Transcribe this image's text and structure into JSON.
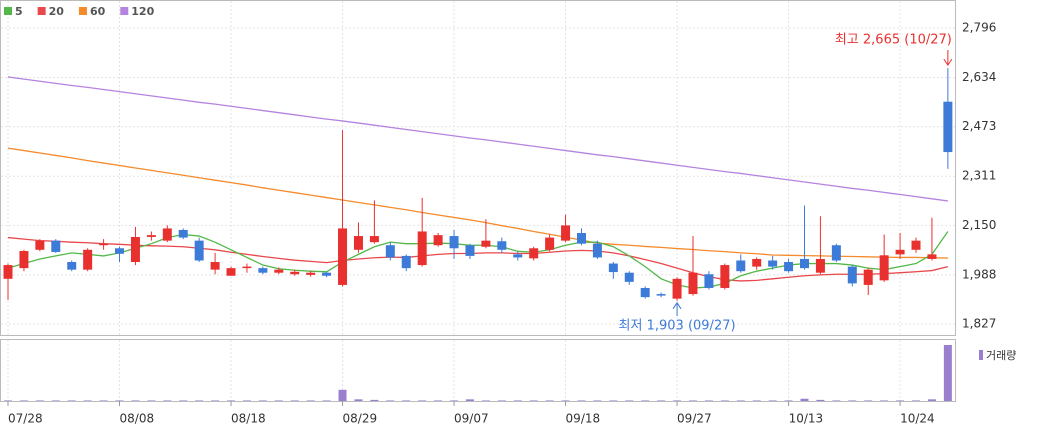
{
  "chart_data": {
    "type": "candlestick",
    "categories": [
      "07/28",
      null,
      null,
      null,
      null,
      null,
      null,
      "08/08",
      null,
      null,
      null,
      null,
      null,
      null,
      "08/18",
      null,
      null,
      null,
      null,
      null,
      null,
      "08/29",
      null,
      null,
      null,
      null,
      null,
      null,
      "09/07",
      null,
      null,
      null,
      null,
      null,
      null,
      "09/18",
      null,
      null,
      null,
      null,
      null,
      null,
      "09/27",
      null,
      null,
      null,
      null,
      null,
      null,
      "10/13",
      null,
      null,
      null,
      null,
      null,
      null,
      "10/24",
      null,
      null,
      null
    ],
    "open": [
      1975,
      2010,
      2070,
      2100,
      2030,
      2005,
      2085,
      2075,
      2030,
      2112,
      2100,
      2135,
      2100,
      2005,
      1985,
      2010,
      2010,
      1995,
      1990,
      1988,
      1995,
      1955,
      2070,
      2095,
      2085,
      2050,
      2020,
      2085,
      2115,
      2085,
      2080,
      2098,
      2055,
      2042,
      2070,
      2100,
      2125,
      2090,
      2025,
      1995,
      1945,
      1925,
      1910,
      1925,
      1990,
      1945,
      2035,
      2015,
      2035,
      2030,
      2040,
      1995,
      2085,
      2015,
      1955,
      1970,
      2055,
      2070,
      2040,
      2555
    ],
    "high": [
      2025,
      2070,
      2105,
      2105,
      2035,
      2075,
      2105,
      2080,
      2145,
      2130,
      2150,
      2140,
      2110,
      2060,
      2015,
      2025,
      2015,
      2012,
      2005,
      2002,
      1998,
      2462,
      2160,
      2232,
      2095,
      2055,
      2240,
      2125,
      2135,
      2090,
      2170,
      2110,
      2065,
      2080,
      2120,
      2185,
      2140,
      2100,
      2030,
      2000,
      1950,
      1930,
      1980,
      2115,
      2000,
      2025,
      2055,
      2045,
      2050,
      2040,
      2215,
      2180,
      2090,
      2020,
      2010,
      2120,
      2125,
      2110,
      2175,
      2665
    ],
    "low": [
      1906,
      2000,
      2065,
      2060,
      2000,
      2000,
      2070,
      2030,
      2020,
      2100,
      2095,
      2105,
      2030,
      1990,
      1985,
      1995,
      1990,
      1990,
      1985,
      1982,
      1980,
      1950,
      2060,
      2090,
      2035,
      2000,
      2015,
      2080,
      2040,
      2040,
      2075,
      2060,
      2035,
      2035,
      2065,
      2095,
      2085,
      2040,
      1975,
      1955,
      1910,
      1915,
      1903,
      1920,
      1940,
      1940,
      1995,
      2005,
      2005,
      1995,
      2005,
      1990,
      2030,
      1950,
      1922,
      1965,
      2040,
      2060,
      2035,
      2335
    ],
    "close": [
      2020,
      2066,
      2100,
      2063,
      2005,
      2070,
      2090,
      2057,
      2112,
      2118,
      2140,
      2110,
      2035,
      2030,
      2010,
      2015,
      1995,
      2005,
      1998,
      1995,
      1985,
      2140,
      2115,
      2115,
      2045,
      2010,
      2130,
      2118,
      2075,
      2050,
      2100,
      2070,
      2045,
      2075,
      2110,
      2150,
      2090,
      2045,
      1997,
      1965,
      1915,
      1920,
      1975,
      1995,
      1945,
      2020,
      2000,
      2040,
      2015,
      2000,
      2010,
      2040,
      2035,
      1960,
      2005,
      2052,
      2070,
      2100,
      2055,
      2390
    ],
    "up_color": "#e8312f",
    "down_color": "#3d7bd9",
    "series": [
      {
        "name": "5",
        "color": "#52b848",
        "values": [
          2010,
          2025,
          2040,
          2050,
          2060,
          2055,
          2050,
          2060,
          2075,
          2090,
          2110,
          2120,
          2115,
          2095,
          2070,
          2045,
          2020,
          2008,
          2003,
          2000,
          1998,
          2030,
          2055,
          2080,
          2095,
          2090,
          2090,
          2092,
          2090,
          2085,
          2085,
          2080,
          2065,
          2062,
          2070,
          2085,
          2095,
          2095,
          2080,
          2050,
          2015,
          1975,
          1955,
          1945,
          1948,
          1960,
          1985,
          2000,
          2010,
          2020,
          2025,
          2025,
          2025,
          2020,
          2010,
          2005,
          2015,
          2025,
          2055,
          2130
        ]
      },
      {
        "name": "20",
        "color": "#e8474b",
        "values": [
          2110,
          2105,
          2100,
          2098,
          2095,
          2093,
          2090,
          2088,
          2085,
          2083,
          2082,
          2080,
          2075,
          2070,
          2062,
          2055,
          2048,
          2042,
          2036,
          2032,
          2028,
          2035,
          2040,
          2044,
          2046,
          2045,
          2050,
          2055,
          2058,
          2058,
          2060,
          2060,
          2058,
          2058,
          2062,
          2066,
          2068,
          2066,
          2060,
          2050,
          2038,
          2025,
          2010,
          1995,
          1982,
          1972,
          1968,
          1970,
          1975,
          1980,
          1985,
          1988,
          1990,
          1990,
          1990,
          1992,
          1995,
          1998,
          2002,
          2015
        ]
      },
      {
        "name": "60",
        "color": "#f58b2c",
        "values": [
          2403,
          2395,
          2387,
          2379,
          2371,
          2362,
          2354,
          2346,
          2338,
          2330,
          2322,
          2314,
          2306,
          2298,
          2290,
          2282,
          2273,
          2265,
          2257,
          2249,
          2241,
          2233,
          2225,
          2217,
          2209,
          2201,
          2192,
          2184,
          2176,
          2168,
          2159,
          2149,
          2140,
          2130,
          2121,
          2111,
          2102,
          2092,
          2088,
          2085,
          2081,
          2078,
          2074,
          2071,
          2067,
          2064,
          2060,
          2057,
          2053,
          2052,
          2051,
          2050,
          2049,
          2048,
          2047,
          2046,
          2045,
          2045,
          2044,
          2043
        ]
      },
      {
        "name": "120",
        "color": "#b583e0",
        "values": [
          2636,
          2629,
          2622,
          2615,
          2608,
          2602,
          2595,
          2588,
          2581,
          2574,
          2567,
          2560,
          2553,
          2547,
          2540,
          2533,
          2526,
          2519,
          2512,
          2505,
          2498,
          2492,
          2485,
          2478,
          2471,
          2464,
          2457,
          2450,
          2443,
          2436,
          2430,
          2423,
          2416,
          2409,
          2402,
          2395,
          2388,
          2381,
          2375,
          2368,
          2361,
          2354,
          2347,
          2340,
          2333,
          2326,
          2320,
          2313,
          2306,
          2299,
          2292,
          2285,
          2278,
          2271,
          2265,
          2258,
          2251,
          2244,
          2237,
          2230
        ]
      }
    ],
    "volume": {
      "name": "거래량",
      "color": "#9b7fcf",
      "values": [
        1,
        1,
        1,
        1,
        1,
        1,
        1,
        1,
        1,
        1,
        1,
        1,
        1,
        1,
        1,
        1,
        1,
        1,
        1,
        1,
        1,
        20,
        3,
        2,
        1,
        1,
        1,
        1,
        1,
        3,
        1,
        1,
        1,
        1,
        1,
        1,
        1,
        1,
        1,
        1,
        1,
        1,
        1,
        1,
        1,
        1,
        1,
        1,
        1,
        1,
        4,
        2,
        1,
        1,
        1,
        1,
        1,
        1,
        3,
        100
      ]
    },
    "annotations": [
      {
        "text": "최고 2,665 (10/27)",
        "color": "#e8312f"
      },
      {
        "text": "최저 1,903 (09/27)",
        "color": "#3d7bd9"
      }
    ],
    "ylim": [
      1791,
      2888
    ],
    "yticks": [
      {
        "value": 1827,
        "label": "1,827"
      },
      {
        "value": 1988,
        "label": "1,988"
      },
      {
        "value": 2150,
        "label": "2,150"
      },
      {
        "value": 2311,
        "label": "2,311"
      },
      {
        "value": 2473,
        "label": "2,473"
      },
      {
        "value": 2634,
        "label": "2,634"
      },
      {
        "value": 2796,
        "label": "2,796"
      }
    ],
    "grid": true
  }
}
